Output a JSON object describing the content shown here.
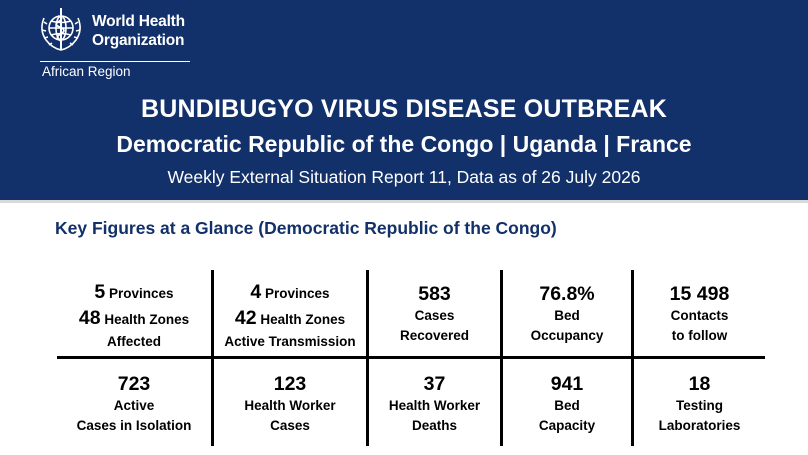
{
  "header": {
    "org_line1": "World Health",
    "org_line2": "Organization",
    "region": "African Region",
    "title": "BUNDIBUGYO VIRUS DISEASE OUTBREAK",
    "countries": "Democratic Republic of the Congo | Uganda | France",
    "subtitle": "Weekly External Situation Report 11, Data as of 26 July 2026",
    "icon": "who-emblem-icon"
  },
  "section": {
    "heading": "Key Figures at a Glance (Democratic Republic of the Congo)"
  },
  "figures": {
    "row1": [
      {
        "provinces_num": "5",
        "provinces_label": "Provinces",
        "zones_num": "48",
        "zones_label": "Health Zones",
        "caption": "Affected"
      },
      {
        "provinces_num": "4",
        "provinces_label": "Provinces",
        "zones_num": "42",
        "zones_label": "Health Zones",
        "caption": "Active Transmission"
      },
      {
        "value": "583",
        "line1": "Cases",
        "line2": "Recovered"
      },
      {
        "value": "76.8%",
        "line1": "Bed",
        "line2": "Occupancy"
      },
      {
        "value": "15 498",
        "line1": "Contacts",
        "line2": "to follow"
      }
    ],
    "row2": [
      {
        "value": "723",
        "line1": "Active",
        "line2": "Cases in Isolation"
      },
      {
        "value": "123",
        "line1": "Health Worker",
        "line2": "Cases"
      },
      {
        "value": "37",
        "line1": "Health Worker",
        "line2": "Deaths"
      },
      {
        "value": "941",
        "line1": "Bed",
        "line2": "Capacity"
      },
      {
        "value": "18",
        "line1": "Testing",
        "line2": "Laboratories"
      }
    ]
  },
  "colors": {
    "banner": "#123069",
    "heading": "#123069"
  }
}
